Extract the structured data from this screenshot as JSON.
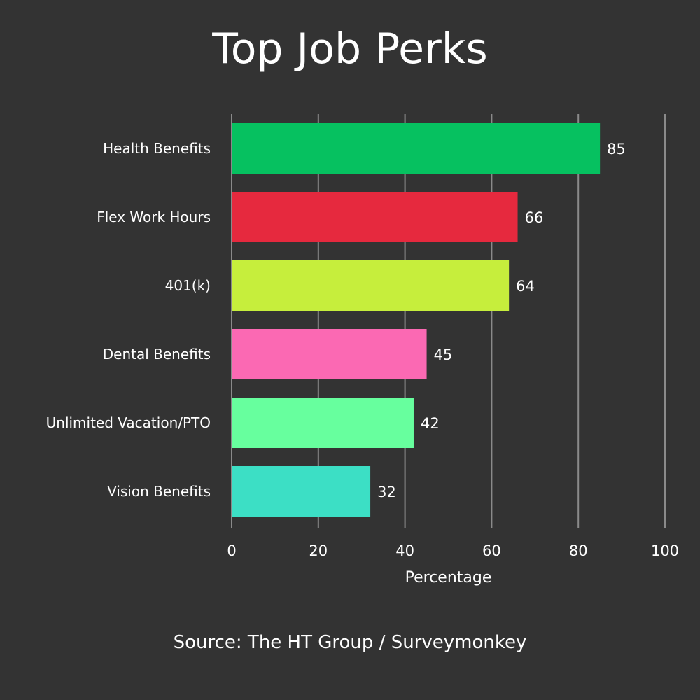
{
  "title": "Top Job Perks",
  "source": "Source: The HT Group / Surveymonkey",
  "background_color": "#333333",
  "text_color": "#ffffff",
  "grid_color": "#8a8a8a",
  "chart_data": {
    "type": "bar",
    "orientation": "horizontal",
    "title": "Top Job Perks",
    "xlabel": "Percentage",
    "ylabel": "",
    "xlim": [
      0,
      100
    ],
    "xticks": [
      0,
      20,
      40,
      60,
      80,
      100
    ],
    "grid": true,
    "legend": "none",
    "categories": [
      "Health Benefits",
      "Flex Work Hours",
      "401(k)",
      "Dental Benefits",
      "Unlimited Vacation/PTO",
      "Vision Benefits"
    ],
    "values": [
      85,
      66,
      64,
      45,
      42,
      32
    ],
    "colors": [
      "#06c160",
      "#e6293e",
      "#c6ee3c",
      "#fb69b3",
      "#67ff9e",
      "#3cdfc5"
    ],
    "data_labels": [
      "85",
      "66",
      "64",
      "45",
      "42",
      "32"
    ]
  }
}
